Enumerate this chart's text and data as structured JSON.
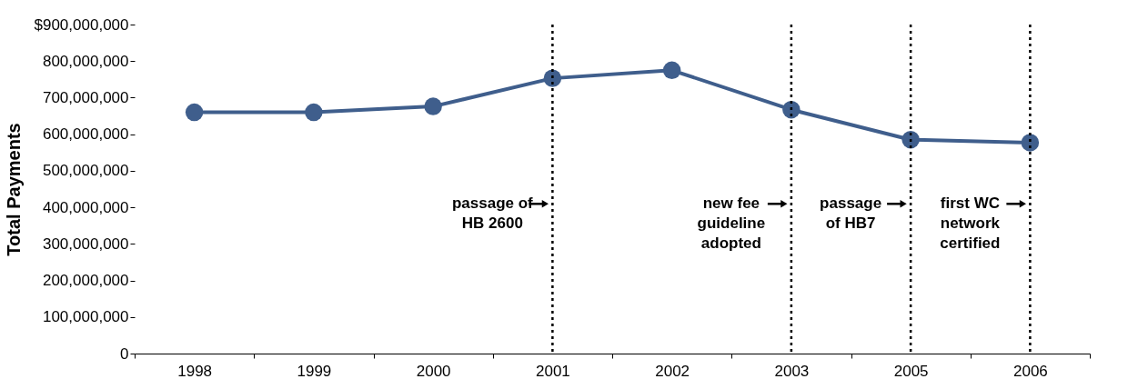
{
  "chart_data": {
    "type": "line",
    "ylabel": "Total Payments",
    "categories": [
      "1998",
      "1999",
      "2000",
      "2001",
      "2002",
      "2003",
      "2005",
      "2006"
    ],
    "series": [
      {
        "color": "#3f5e8c",
        "values": [
          660000000,
          660000000,
          676000000,
          753000000,
          775000000,
          667000000,
          585000000,
          577000000
        ]
      }
    ],
    "ylim": [
      0,
      900000000
    ],
    "yticks": [
      {
        "value": 0,
        "label": "0"
      },
      {
        "value": 100000000,
        "label": "100,000,000"
      },
      {
        "value": 200000000,
        "label": "200,000,000"
      },
      {
        "value": 300000000,
        "label": "300,000,000"
      },
      {
        "value": 400000000,
        "label": "400,000,000"
      },
      {
        "value": 500000000,
        "label": "500,000,000"
      },
      {
        "value": 600000000,
        "label": "600,000,000"
      },
      {
        "value": 700000000,
        "label": "700,000,000"
      },
      {
        "value": 800000000,
        "label": "800,000,000"
      },
      {
        "value": 900000000,
        "label": "$900,000,000"
      }
    ],
    "ref_lines": [
      {
        "axis": "x",
        "value": "2001",
        "label": "passage of\nHB 2600",
        "line_style": "dotted",
        "color": "#000000"
      },
      {
        "axis": "x",
        "value": "2003",
        "label": "new fee\nguideline\nadopted",
        "line_style": "dotted",
        "color": "#000000"
      },
      {
        "axis": "x",
        "value": "2005",
        "label": "passage\nof HB7",
        "line_style": "dotted",
        "color": "#000000"
      },
      {
        "axis": "x",
        "value": "2006",
        "label": "first WC\nnetwork\ncertified",
        "line_style": "dotted",
        "color": "#000000"
      }
    ],
    "grid": false,
    "marker": "circle",
    "line_style": "solid"
  }
}
